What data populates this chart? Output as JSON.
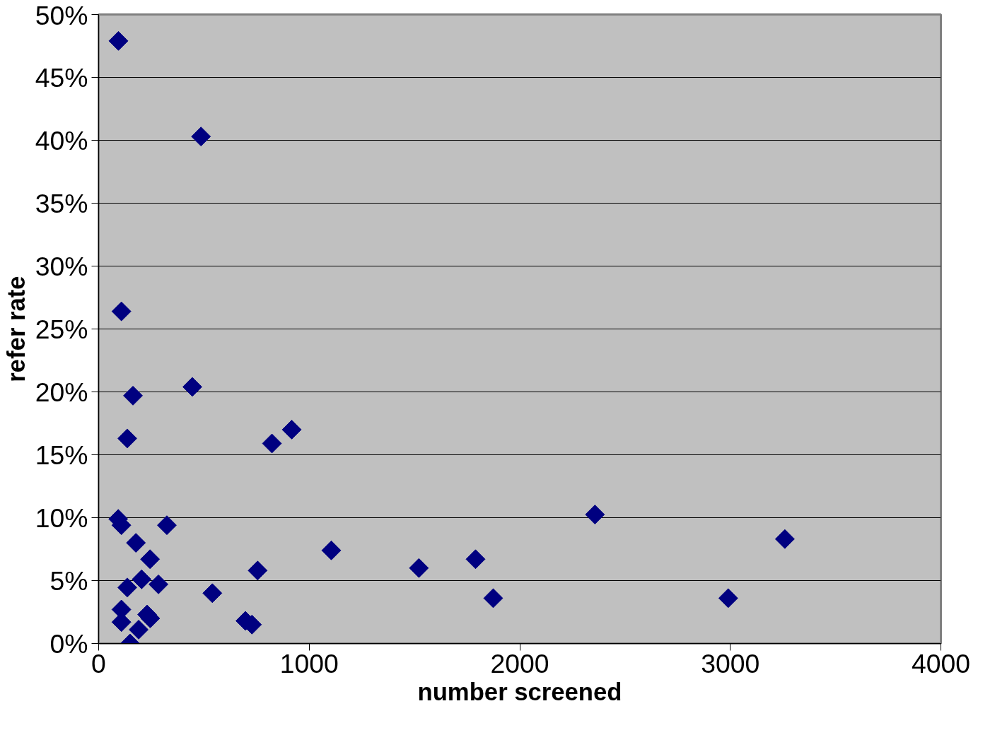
{
  "chart_data": {
    "type": "scatter",
    "xlabel": "number screened",
    "ylabel": "refer rate",
    "x": [
      94,
      486,
      108,
      163,
      445,
      136,
      823,
      917,
      93,
      108,
      324,
      177,
      244,
      755,
      204,
      136,
      284,
      540,
      108,
      108,
      230,
      245,
      190,
      149,
      697,
      728,
      1105,
      1521,
      1790,
      1874,
      2357,
      2990,
      3259
    ],
    "series": [
      {
        "color": "#000080",
        "values": [
          47.9,
          40.3,
          26.4,
          19.7,
          20.4,
          16.3,
          15.9,
          17.0,
          9.9,
          9.4,
          9.4,
          8.0,
          6.7,
          5.8,
          5.1,
          4.45,
          4.7,
          4.0,
          2.7,
          1.7,
          2.3,
          2.0,
          1.1,
          0,
          1.8,
          1.5,
          7.4,
          6.0,
          6.7,
          3.6,
          10.25,
          3.6,
          8.3
        ]
      }
    ],
    "marker": "diamond",
    "grid": "y",
    "xlim": [
      0,
      4000
    ],
    "xticks": [
      0,
      1000,
      2000,
      3000,
      4000
    ],
    "ylim": [
      0,
      50
    ],
    "yticks": [
      {
        "value": 0,
        "label": "0%"
      },
      {
        "value": 5,
        "label": "5%"
      },
      {
        "value": 10,
        "label": "10%"
      },
      {
        "value": 15,
        "label": "15%"
      },
      {
        "value": 20,
        "label": "20%"
      },
      {
        "value": 25,
        "label": "25%"
      },
      {
        "value": 30,
        "label": "30%"
      },
      {
        "value": 35,
        "label": "35%"
      },
      {
        "value": 40,
        "label": "40%"
      },
      {
        "value": 45,
        "label": "45%"
      },
      {
        "value": 50,
        "label": "50%"
      }
    ]
  }
}
